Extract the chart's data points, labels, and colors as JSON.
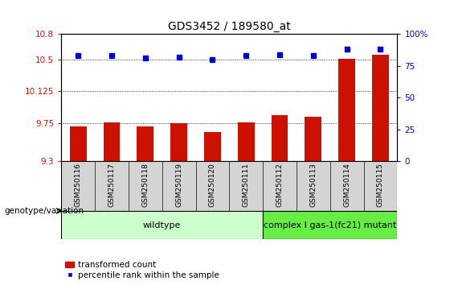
{
  "title": "GDS3452 / 189580_at",
  "samples": [
    "GSM250116",
    "GSM250117",
    "GSM250118",
    "GSM250119",
    "GSM250120",
    "GSM250111",
    "GSM250112",
    "GSM250113",
    "GSM250114",
    "GSM250115"
  ],
  "bar_values": [
    9.71,
    9.76,
    9.71,
    9.75,
    9.64,
    9.76,
    9.84,
    9.82,
    10.51,
    10.56
  ],
  "dot_values": [
    83,
    83,
    81,
    82,
    80,
    83,
    84,
    83,
    88,
    88
  ],
  "ylim_left": [
    9.3,
    10.8
  ],
  "ylim_right": [
    0,
    100
  ],
  "yticks_left": [
    9.3,
    9.75,
    10.125,
    10.5,
    10.8
  ],
  "ytick_labels_left": [
    "9.3",
    "9.75",
    "10.125",
    "10.5",
    "10.8"
  ],
  "yticks_right": [
    0,
    25,
    50,
    75,
    100
  ],
  "ytick_labels_right": [
    "0",
    "25",
    "50",
    "75",
    "100%"
  ],
  "hlines": [
    9.75,
    10.125,
    10.5
  ],
  "bar_color": "#cc1100",
  "dot_color": "#0000cc",
  "wildtype_count": 6,
  "mutant_count": 4,
  "wildtype_label": "wildtype",
  "mutant_label": "complex I gas-1(fc21) mutant",
  "wildtype_color": "#ccffcc",
  "mutant_color": "#66ee44",
  "xlabel_genotype": "genotype/variation",
  "legend_bar_label": "transformed count",
  "legend_dot_label": "percentile rank within the sample",
  "title_fontsize": 10,
  "tick_fontsize": 7.5,
  "sample_label_fontsize": 6.5,
  "group_label_fontsize": 8,
  "legend_fontsize": 7.5
}
